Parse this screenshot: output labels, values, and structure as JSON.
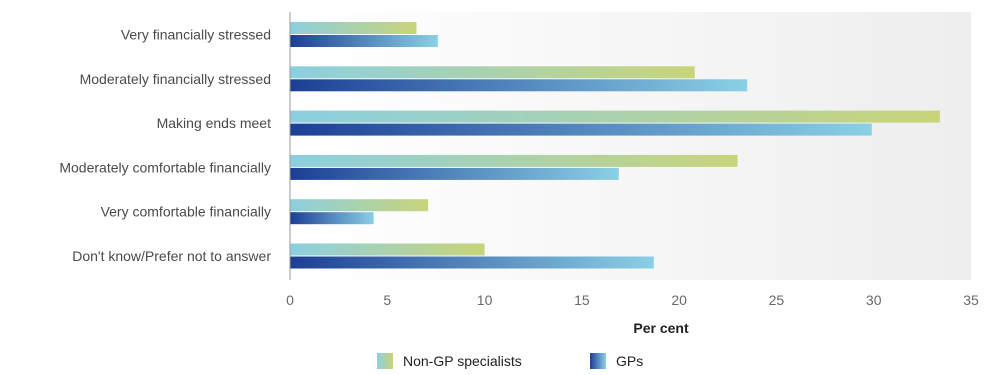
{
  "chart_data": {
    "type": "bar",
    "orientation": "horizontal",
    "categories": [
      "Very financially stressed",
      "Moderately financially stressed",
      "Making ends meet",
      "Moderately comfortable financially",
      "Very comfortable financially",
      "Don't know/Prefer not to answer"
    ],
    "series": [
      {
        "name": "Non-GP specialists",
        "values": [
          6.5,
          20.8,
          33.4,
          23.0,
          7.1,
          10.0
        ],
        "gradient": [
          "#8ccfe0",
          "#c9d47a"
        ]
      },
      {
        "name": "GPs",
        "values": [
          7.6,
          23.5,
          29.9,
          16.9,
          4.3,
          18.7
        ],
        "gradient": [
          "#1c3f94",
          "#8bd0e6"
        ]
      }
    ],
    "xlabel": "Per cent",
    "ylabel": "",
    "xlim": [
      0,
      35
    ],
    "xticks": [
      0,
      5,
      10,
      15,
      20,
      25,
      30,
      35
    ],
    "grid": false,
    "legend_position": "bottom"
  }
}
